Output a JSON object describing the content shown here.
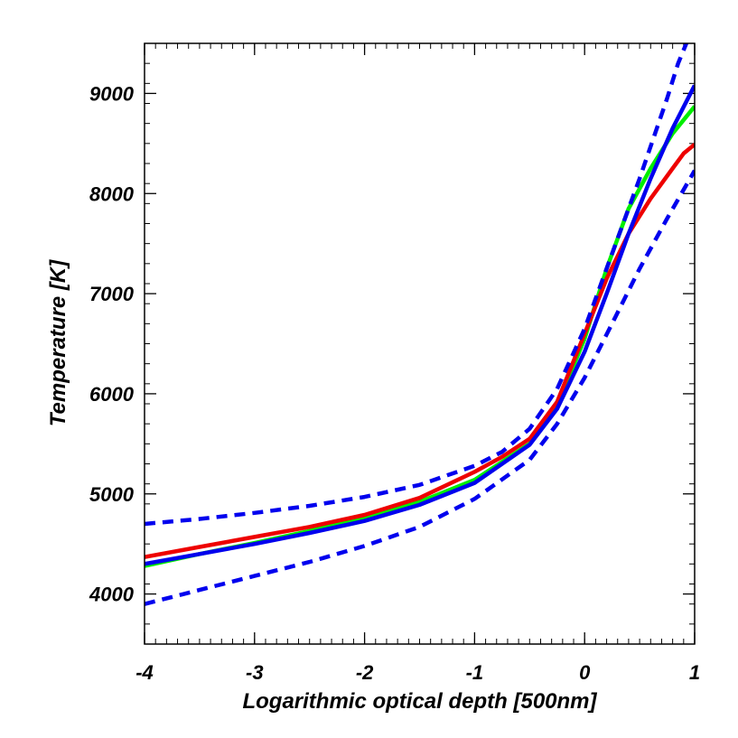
{
  "chart_data": {
    "type": "line",
    "title": "",
    "xlabel": "Logarithmic optical depth [500nm]",
    "ylabel": "Temperature [K]",
    "xlim": [
      -4,
      1
    ],
    "ylim": [
      3500,
      9500
    ],
    "xticks": [
      -4,
      -3,
      -2,
      -1,
      0,
      1
    ],
    "yticks": [
      4000,
      5000,
      6000,
      7000,
      8000,
      9000
    ],
    "x_minor_step": 0.1,
    "y_minor_step": 200,
    "grid": false,
    "legend": "none",
    "series": [
      {
        "color": "#00ee00",
        "dashed": false,
        "x": [
          -4,
          -3.5,
          -3,
          -2.5,
          -2,
          -1.5,
          -1,
          -0.5,
          -0.25,
          0,
          0.2,
          0.4,
          0.6,
          0.8,
          1
        ],
        "y": [
          4280,
          4400,
          4510,
          4630,
          4760,
          4920,
          5140,
          5500,
          5880,
          6550,
          7250,
          7850,
          8250,
          8600,
          8870
        ]
      },
      {
        "color": "#ee0000",
        "dashed": false,
        "x": [
          -4,
          -3.5,
          -3,
          -2.5,
          -2,
          -1.5,
          -1,
          -0.75,
          -0.5,
          -0.25,
          0,
          0.2,
          0.4,
          0.6,
          0.8,
          0.9,
          1
        ],
        "y": [
          4370,
          4470,
          4570,
          4670,
          4790,
          4960,
          5220,
          5370,
          5550,
          5920,
          6600,
          7150,
          7600,
          7950,
          8250,
          8400,
          8490
        ]
      },
      {
        "color": "#0000ee",
        "dashed": false,
        "x": [
          -4,
          -3.5,
          -3,
          -2.5,
          -2,
          -1.5,
          -1,
          -0.5,
          -0.25,
          0,
          0.2,
          0.4,
          0.6,
          0.8,
          1
        ],
        "y": [
          4300,
          4400,
          4500,
          4610,
          4730,
          4890,
          5110,
          5490,
          5850,
          6420,
          7000,
          7600,
          8150,
          8650,
          9080
        ]
      },
      {
        "color": "#0000ee",
        "dashed": true,
        "x": [
          -4,
          -3.5,
          -3,
          -2.5,
          -2,
          -1.5,
          -1,
          -0.75,
          -0.5,
          -0.25,
          0,
          0.25,
          0.5,
          0.75,
          0.85,
          1
        ],
        "y": [
          4700,
          4750,
          4810,
          4880,
          4970,
          5090,
          5280,
          5420,
          5650,
          6050,
          6650,
          7400,
          8150,
          8950,
          9300,
          9700
        ]
      },
      {
        "color": "#0000ee",
        "dashed": true,
        "x": [
          -4,
          -3.5,
          -3,
          -2.5,
          -2,
          -1.5,
          -1,
          -0.5,
          -0.25,
          0,
          0.25,
          0.5,
          0.75,
          1
        ],
        "y": [
          3900,
          4040,
          4180,
          4320,
          4480,
          4670,
          4950,
          5340,
          5700,
          6160,
          6700,
          7250,
          7750,
          8230
        ]
      }
    ]
  }
}
